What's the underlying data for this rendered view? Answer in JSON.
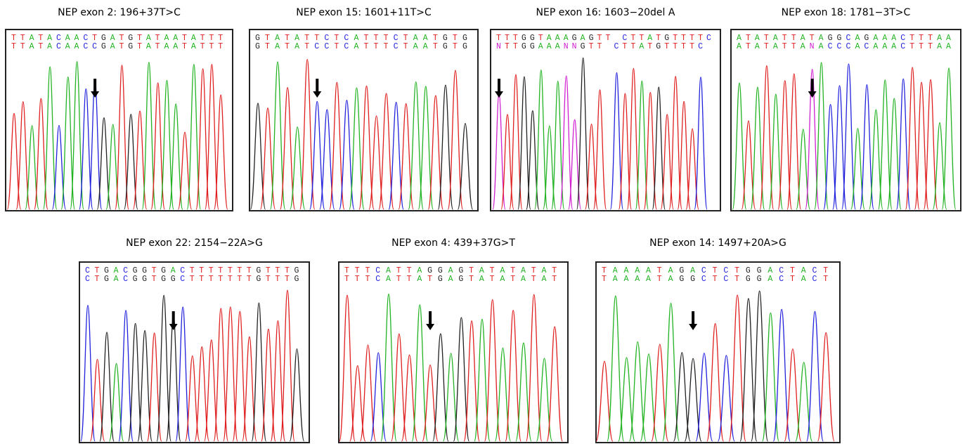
{
  "panels": [
    {
      "title": "NEP exon 2: 196+37T>C",
      "reference": "TTATACAACTGATGTATAATATTT",
      "patient": "TTATACAACCGATGTATAATATTT"
    },
    {
      "title": "NEP exon 15: 1601+11T>C",
      "reference": "GTATATTCTCATTTCTAATGTG",
      "patient": "GTATATCCTCATTTCTAATGTG"
    },
    {
      "title": "NEP exon 16: 1603−20del A",
      "reference": "TTTGGTAAAGAGTT CTTATGTTTTC",
      "patient": "NTTGGAAANNGTT CTTATGTTTTC"
    },
    {
      "title": "NEP exon 18: 1781−3T>C",
      "reference": "ATATATTATAGGCAGAAACTTTAA",
      "patient": "ATATATTANACCCACAAACTTTAA"
    },
    {
      "title": "NEP exon 22: 2154−22A>G",
      "reference": "CTGACGGTGACTTTTTTTGTTTG",
      "patient": "CTGACGGTGGCTTTTTTTGTTTG"
    },
    {
      "title": "NEP exon 4: 439+37G>T",
      "reference": "TTTCATTAGGAGTATATATAT",
      "patient": "TTTCATTATGAGTATATATAT"
    },
    {
      "title": "NEP exon 14: 1497+20A>G",
      "reference": "TAAAATAGACTCTGGACTACT",
      "patient": "TAAAATAGGCTCTGGACTACT"
    }
  ]
}
